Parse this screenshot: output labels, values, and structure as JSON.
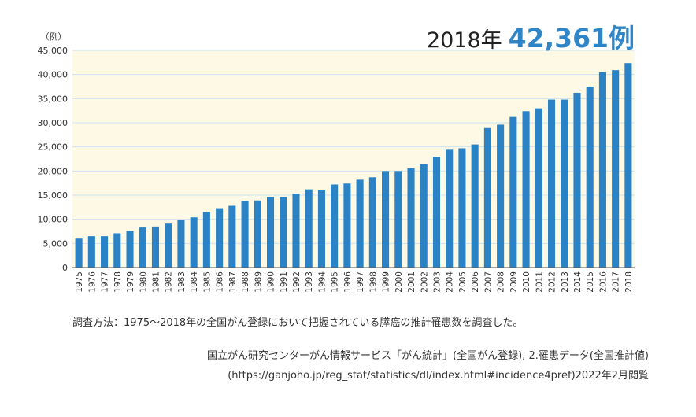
{
  "headline": {
    "year_label": "2018年",
    "value_label": "42,361例"
  },
  "colors": {
    "bar": "#2b83c6",
    "plot_bg": "#fdf9e4",
    "gridline": "#cfe4ef",
    "accent": "#2e86c9"
  },
  "note": "調査方法：1975〜2018年の全国がん登録において把握されている膵癌の推計罹患数を調査した。",
  "source": {
    "line1": "国立がん研究センターがん情報サービス「がん統計」(全国がん登録), 2.罹患データ(全国推計値)",
    "line2": "(https://ganjoho.jp/reg_stat/statistics/dl/index.html#incidence4pref)2022年2月閲覧"
  },
  "chart_data": {
    "type": "bar",
    "title": "",
    "xlabel": "",
    "ylabel": "",
    "unit_label": "（例）",
    "ylim": [
      0,
      45000
    ],
    "yticks": [
      0,
      5000,
      10000,
      15000,
      20000,
      25000,
      30000,
      35000,
      40000,
      45000
    ],
    "ytick_labels": [
      "0",
      "5,000",
      "10,000",
      "15,000",
      "20,000",
      "25,000",
      "30,000",
      "35,000",
      "40,000",
      "45,000"
    ],
    "grid": true,
    "categories": [
      "1975",
      "1976",
      "1977",
      "1978",
      "1979",
      "1980",
      "1981",
      "1982",
      "1983",
      "1984",
      "1985",
      "1986",
      "1987",
      "1988",
      "1989",
      "1990",
      "1991",
      "1992",
      "1993",
      "1994",
      "1995",
      "1996",
      "1997",
      "1998",
      "1999",
      "2000",
      "2001",
      "2002",
      "2003",
      "2004",
      "2005",
      "2006",
      "2007",
      "2008",
      "2009",
      "2010",
      "2011",
      "2012",
      "2013",
      "2014",
      "2015",
      "2016",
      "2017",
      "2018"
    ],
    "values": [
      6000,
      6500,
      6500,
      7100,
      7600,
      8300,
      8500,
      9100,
      9800,
      10400,
      11500,
      12300,
      12800,
      13800,
      13900,
      14600,
      14600,
      15300,
      16200,
      16100,
      17200,
      17400,
      18200,
      18700,
      20000,
      20000,
      20600,
      21400,
      22900,
      24400,
      24700,
      25500,
      28900,
      29600,
      31200,
      32400,
      33000,
      34800,
      34800,
      36200,
      37500,
      40500,
      40900,
      42361
    ]
  }
}
